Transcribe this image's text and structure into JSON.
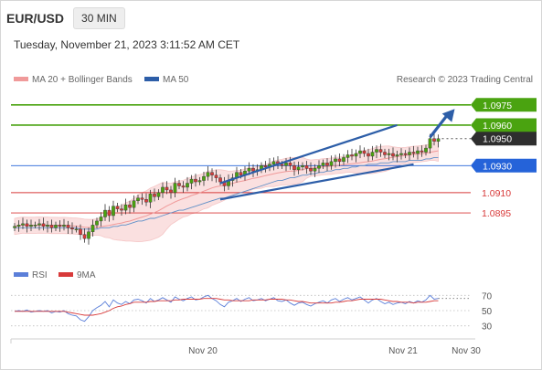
{
  "header": {
    "pair": "EUR/USD",
    "timeframe": "30 MIN"
  },
  "datetime": "Tuesday, November 21, 2023 3:11:52 AM CET",
  "legend": {
    "ma20": "MA 20 + Bollinger Bands",
    "ma50": "MA 50",
    "credit": "Research © 2023 Trading Central"
  },
  "rsi_legend": {
    "rsi": "RSI",
    "ma9": "9MA"
  },
  "colors": {
    "green": "#4aa310",
    "blue": "#2563d9",
    "red": "#d83a3a",
    "up": "#4aa310",
    "down": "#d83a3a",
    "bb": "#f5c6c6",
    "ma20": "#f09a9a",
    "ma50": "#5f8fc7",
    "trend": "#2d5ea8",
    "current": "#333333"
  },
  "chart_data": [
    {
      "type": "candlestick",
      "title": "EUR/USD 30 MIN",
      "x_ticks": [
        "Nov 20",
        "Nov 21",
        "Nov 30"
      ],
      "ylim": [
        1.087,
        1.0985
      ],
      "levels": [
        {
          "value": 1.0975,
          "label": "1.0975",
          "role": "resistance",
          "color": "green"
        },
        {
          "value": 1.096,
          "label": "1.0960",
          "role": "resistance",
          "color": "green"
        },
        {
          "value": 1.095,
          "label": "1.0950",
          "role": "current",
          "color": "current"
        },
        {
          "value": 1.093,
          "label": "1.0930",
          "role": "pivot",
          "color": "blue"
        },
        {
          "value": 1.091,
          "label": "1.0910",
          "role": "support",
          "color": "red"
        },
        {
          "value": 1.0895,
          "label": "1.0895",
          "role": "support",
          "color": "red"
        }
      ],
      "close": [
        1.0885,
        1.0886,
        1.0887,
        1.0885,
        1.0886,
        1.0886,
        1.0887,
        1.0885,
        1.0886,
        1.0884,
        1.0886,
        1.0885,
        1.0886,
        1.0884,
        1.0883,
        1.0883,
        1.0879,
        1.0876,
        1.0881,
        1.0886,
        1.0889,
        1.0892,
        1.0897,
        1.0893,
        1.09,
        1.0898,
        1.0897,
        1.0901,
        1.0899,
        1.0904,
        1.0906,
        1.0905,
        1.0903,
        1.0909,
        1.0907,
        1.091,
        1.0914,
        1.0912,
        1.091,
        1.0917,
        1.0915,
        1.0914,
        1.0917,
        1.092,
        1.0918,
        1.0919,
        1.0922,
        1.0925,
        1.0923,
        1.0921,
        1.0918,
        1.0915,
        1.0919,
        1.0921,
        1.0925,
        1.0923,
        1.0926,
        1.0928,
        1.0926,
        1.0927,
        1.093,
        1.0929,
        1.0931,
        1.0933,
        1.0931,
        1.093,
        1.0932,
        1.093,
        1.0927,
        1.0929,
        1.093,
        1.0928,
        1.0926,
        1.0928,
        1.093,
        1.0932,
        1.093,
        1.0933,
        1.0935,
        1.0933,
        1.0936,
        1.0938,
        1.0937,
        1.0939,
        1.0941,
        1.0939,
        1.0937,
        1.094,
        1.0942,
        1.094,
        1.0938,
        1.0939,
        1.0937,
        1.0938,
        1.0939,
        1.0938,
        1.094,
        1.0939,
        1.0941,
        1.094,
        1.0943,
        1.095,
        1.0948,
        1.095
      ],
      "open": [
        1.0884,
        1.0885,
        1.0886,
        1.0887,
        1.0885,
        1.0886,
        1.0886,
        1.0887,
        1.0885,
        1.0886,
        1.0884,
        1.0886,
        1.0885,
        1.0886,
        1.0884,
        1.0883,
        1.0883,
        1.0879,
        1.0876,
        1.0881,
        1.0886,
        1.0889,
        1.0892,
        1.0897,
        1.0893,
        1.09,
        1.0898,
        1.0897,
        1.0901,
        1.0899,
        1.0904,
        1.0906,
        1.0905,
        1.0903,
        1.0909,
        1.0907,
        1.091,
        1.0914,
        1.0912,
        1.091,
        1.0917,
        1.0915,
        1.0914,
        1.0917,
        1.092,
        1.0918,
        1.0919,
        1.0922,
        1.0925,
        1.0923,
        1.0921,
        1.0918,
        1.0915,
        1.0919,
        1.0921,
        1.0925,
        1.0923,
        1.0926,
        1.0928,
        1.0926,
        1.0927,
        1.093,
        1.0929,
        1.0931,
        1.0933,
        1.0931,
        1.093,
        1.0932,
        1.093,
        1.0927,
        1.0929,
        1.093,
        1.0928,
        1.0926,
        1.0928,
        1.093,
        1.0932,
        1.093,
        1.0933,
        1.0935,
        1.0933,
        1.0936,
        1.0938,
        1.0937,
        1.0939,
        1.0941,
        1.0939,
        1.0937,
        1.094,
        1.0942,
        1.094,
        1.0938,
        1.0939,
        1.0937,
        1.0938,
        1.0939,
        1.0938,
        1.094,
        1.0939,
        1.0941,
        1.094,
        1.0943,
        1.095,
        1.0948
      ],
      "ma50": [
        1.0884,
        1.0884,
        1.0884,
        1.0884,
        1.0884,
        1.0884,
        1.0884,
        1.0884,
        1.0884,
        1.0884,
        1.0884,
        1.0884,
        1.0884,
        1.0884,
        1.0884,
        1.0884,
        1.0883,
        1.0883,
        1.0883,
        1.0883,
        1.0883,
        1.0884,
        1.0884,
        1.0884,
        1.0885,
        1.0885,
        1.0886,
        1.0886,
        1.0887,
        1.0888,
        1.0889,
        1.0889,
        1.089,
        1.0891,
        1.0891,
        1.0892,
        1.0893,
        1.0894,
        1.0895,
        1.0896,
        1.0897,
        1.0897,
        1.0898,
        1.0899,
        1.09,
        1.0901,
        1.0902,
        1.0903,
        1.0904,
        1.0905,
        1.0906,
        1.0906,
        1.0907,
        1.0908,
        1.0909,
        1.091,
        1.0911,
        1.0912,
        1.0913,
        1.0914,
        1.0915,
        1.0916,
        1.0917,
        1.0918,
        1.0919,
        1.0919,
        1.092,
        1.0921,
        1.0921,
        1.0922,
        1.0923,
        1.0923,
        1.0924,
        1.0924,
        1.0925,
        1.0925,
        1.0926,
        1.0926,
        1.0927,
        1.0927,
        1.0928,
        1.0928,
        1.0929,
        1.0929,
        1.093,
        1.093,
        1.0931,
        1.0931,
        1.0931,
        1.0932,
        1.0932,
        1.0932,
        1.0933,
        1.0933,
        1.0933,
        1.0933,
        1.0934,
        1.0934,
        1.0934,
        1.0934,
        1.0935,
        1.0935,
        1.0936,
        1.0936
      ],
      "trend_lines": [
        {
          "from": [
            50,
            1.0917
          ],
          "to": [
            93,
            1.096
          ]
        },
        {
          "from": [
            50,
            1.0905
          ],
          "to": [
            97,
            1.0931
          ]
        }
      ],
      "projection": {
        "from": [
          101,
          1.0951
        ],
        "to": [
          107,
          1.0972
        ]
      }
    },
    {
      "type": "line",
      "title": "RSI",
      "yticks": [
        70,
        50,
        30
      ],
      "ylim": [
        20,
        80
      ],
      "series": [
        {
          "name": "RSI",
          "color": "#5b7fd9",
          "values": [
            49,
            50,
            49,
            51,
            48,
            49,
            50,
            49,
            50,
            47,
            49,
            48,
            50,
            46,
            44,
            43,
            38,
            36,
            42,
            50,
            54,
            57,
            62,
            55,
            64,
            60,
            58,
            62,
            59,
            64,
            65,
            63,
            60,
            66,
            62,
            64,
            67,
            64,
            61,
            68,
            65,
            63,
            66,
            68,
            64,
            65,
            68,
            70,
            66,
            63,
            58,
            55,
            61,
            63,
            66,
            62,
            65,
            67,
            63,
            64,
            66,
            63,
            65,
            67,
            63,
            62,
            64,
            60,
            57,
            60,
            61,
            58,
            56,
            59,
            61,
            63,
            60,
            64,
            66,
            62,
            65,
            67,
            64,
            66,
            68,
            64,
            60,
            64,
            66,
            62,
            59,
            61,
            58,
            60,
            61,
            59,
            62,
            60,
            63,
            61,
            64,
            70,
            65,
            66
          ]
        },
        {
          "name": "9MA",
          "color": "#d83a3a",
          "values": [
            49,
            49,
            49,
            49,
            49,
            49,
            49,
            49,
            49,
            49,
            49,
            49,
            49,
            48,
            47,
            46,
            45,
            44,
            44,
            44,
            45,
            46,
            48,
            50,
            53,
            55,
            56,
            58,
            59,
            61,
            61,
            61,
            61,
            62,
            62,
            63,
            63,
            63,
            63,
            64,
            64,
            65,
            65,
            65,
            65,
            65,
            66,
            66,
            66,
            66,
            65,
            64,
            64,
            63,
            63,
            63,
            63,
            63,
            64,
            64,
            64,
            64,
            65,
            65,
            65,
            65,
            64,
            64,
            63,
            62,
            62,
            61,
            60,
            60,
            60,
            60,
            60,
            60,
            61,
            61,
            62,
            63,
            63,
            64,
            65,
            65,
            65,
            65,
            65,
            65,
            64,
            63,
            62,
            62,
            61,
            61,
            61,
            60,
            61,
            61,
            61,
            62,
            63,
            63
          ]
        }
      ]
    }
  ]
}
